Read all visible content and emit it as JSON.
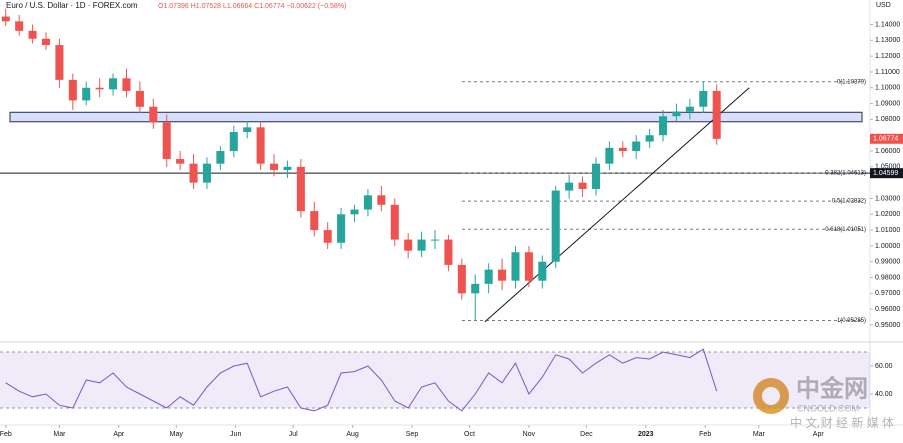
{
  "chart_data": {
    "type": "candlestick",
    "title": "Euro / U.S. Dollar · 1D · FOREX.com",
    "ohlc_text": "O1.07396 H1.07528 L1.06664 C1.06774 −0.00622 (−0.58%)",
    "currency": "USD",
    "up_color": "#26a69a",
    "down_color": "#ef5350",
    "x": [
      0,
      7,
      14,
      21,
      28,
      35,
      42,
      49,
      56,
      63,
      70,
      77,
      84,
      91,
      98,
      105,
      112,
      119,
      126,
      133,
      140,
      147,
      154,
      161,
      168,
      175,
      182,
      189,
      196,
      203,
      210,
      217,
      224,
      231,
      238,
      245,
      252,
      259,
      266,
      273,
      280,
      287,
      294,
      301,
      308,
      315,
      322,
      329,
      336,
      343,
      350,
      357,
      364,
      371
    ],
    "open": [
      1.145,
      1.142,
      1.136,
      1.131,
      1.127,
      1.105,
      1.092,
      1.1,
      1.099,
      1.106,
      1.098,
      1.088,
      1.078,
      1.055,
      1.052,
      1.04,
      1.052,
      1.06,
      1.072,
      1.075,
      1.052,
      1.048,
      1.05,
      1.022,
      1.01,
      1.002,
      1.02,
      1.023,
      1.032,
      1.026,
      1.004,
      0.997,
      1.004,
      1.004,
      0.988,
      0.97,
      0.976,
      0.985,
      0.978,
      0.996,
      0.978,
      0.99,
      1.035,
      1.04,
      1.036,
      1.052,
      1.062,
      1.06,
      1.066,
      1.07,
      1.082,
      1.085,
      1.088,
      1.098
    ],
    "high": [
      1.15,
      1.146,
      1.14,
      1.135,
      1.131,
      1.109,
      1.104,
      1.106,
      1.109,
      1.112,
      1.104,
      1.093,
      1.083,
      1.06,
      1.058,
      1.056,
      1.063,
      1.076,
      1.079,
      1.078,
      1.058,
      1.054,
      1.055,
      1.028,
      1.015,
      1.024,
      1.026,
      1.036,
      1.038,
      1.03,
      1.008,
      1.009,
      1.01,
      1.007,
      0.992,
      0.982,
      0.989,
      0.992,
      1.0,
      1.0,
      0.994,
      1.038,
      1.045,
      1.044,
      1.056,
      1.066,
      1.066,
      1.07,
      1.074,
      1.086,
      1.09,
      1.093,
      1.1038,
      1.102
    ],
    "low": [
      1.139,
      1.133,
      1.128,
      1.124,
      1.1,
      1.086,
      1.089,
      1.094,
      1.095,
      1.094,
      1.084,
      1.074,
      1.05,
      1.048,
      1.036,
      1.036,
      1.048,
      1.056,
      1.068,
      1.048,
      1.044,
      1.043,
      1.018,
      1.006,
      0.998,
      0.998,
      1.015,
      1.019,
      1.022,
      1.0,
      0.992,
      0.993,
      0.998,
      0.984,
      0.966,
      0.9528,
      0.97,
      0.972,
      0.973,
      0.974,
      0.973,
      0.986,
      1.03,
      1.031,
      1.032,
      1.048,
      1.056,
      1.055,
      1.062,
      1.066,
      1.078,
      1.08,
      1.084,
      1.064
    ],
    "close": [
      1.142,
      1.136,
      1.131,
      1.127,
      1.105,
      1.092,
      1.1,
      1.099,
      1.106,
      1.098,
      1.088,
      1.078,
      1.055,
      1.052,
      1.04,
      1.052,
      1.06,
      1.072,
      1.075,
      1.052,
      1.048,
      1.05,
      1.022,
      1.01,
      1.002,
      1.02,
      1.023,
      1.032,
      1.026,
      1.004,
      0.997,
      1.004,
      1.004,
      0.988,
      0.97,
      0.976,
      0.985,
      0.978,
      0.996,
      0.978,
      0.99,
      1.035,
      1.04,
      1.036,
      1.052,
      1.062,
      1.06,
      1.066,
      1.07,
      1.082,
      1.085,
      1.088,
      1.098,
      1.0677
    ],
    "xlim": [
      -3,
      451
    ],
    "xticks": [
      {
        "value": 0,
        "label": "Feb"
      },
      {
        "value": 28,
        "label": "Mar"
      },
      {
        "value": 59,
        "label": "Apr"
      },
      {
        "value": 89,
        "label": "May"
      },
      {
        "value": 120,
        "label": "Jun"
      },
      {
        "value": 150,
        "label": "Jul"
      },
      {
        "value": 181,
        "label": "Aug"
      },
      {
        "value": 212,
        "label": "Sep"
      },
      {
        "value": 242,
        "label": "Oct"
      },
      {
        "value": 273,
        "label": "Nov"
      },
      {
        "value": 303,
        "label": "Dec"
      },
      {
        "value": 334,
        "label": "2023"
      },
      {
        "value": 365,
        "label": "Feb"
      },
      {
        "value": 393,
        "label": "Mar"
      },
      {
        "value": 424,
        "label": "Apr"
      }
    ],
    "ylim": [
      0.9405,
      1.1555
    ],
    "yticks": [
      {
        "value": 0.95,
        "label": "0.95000"
      },
      {
        "value": 0.96,
        "label": "0.96000"
      },
      {
        "value": 0.97,
        "label": "0.97000"
      },
      {
        "value": 0.98,
        "label": "0.98000"
      },
      {
        "value": 0.99,
        "label": "0.99000"
      },
      {
        "value": 1.0,
        "label": "1.00000"
      },
      {
        "value": 1.01,
        "label": "1.01000"
      },
      {
        "value": 1.02,
        "label": "1.02000"
      },
      {
        "value": 1.03,
        "label": "1.03000"
      },
      {
        "value": 1.05,
        "label": "1.05000"
      },
      {
        "value": 1.06,
        "label": "1.06000"
      },
      {
        "value": 1.08,
        "label": "1.08000"
      },
      {
        "value": 1.09,
        "label": "1.09000"
      },
      {
        "value": 1.1,
        "label": "1.10000"
      },
      {
        "value": 1.11,
        "label": "1.11000"
      },
      {
        "value": 1.12,
        "label": "1.12000"
      },
      {
        "value": 1.13,
        "label": "1.13000"
      },
      {
        "value": 1.14,
        "label": "1.14000"
      }
    ],
    "last_price": {
      "value": 1.06774,
      "label": "1.06774"
    },
    "support": {
      "value": 1.04599,
      "label": "1.04599"
    },
    "zone": [
      1.0785,
      1.0845
    ],
    "trendline": {
      "x": [
        250,
        388
      ],
      "y": [
        0.952,
        1.1
      ]
    },
    "fib_levels": [
      {
        "value": 1.10379,
        "label": "0(1.10379)"
      },
      {
        "value": 1.04613,
        "label": "0.382(1.04613)"
      },
      {
        "value": 1.02832,
        "label": "0.5(1.02832)"
      },
      {
        "value": 1.01051,
        "label": "0.618(1.01051)"
      },
      {
        "value": 0.95285,
        "label": "1(0.95285)"
      }
    ],
    "rsi": {
      "color": "#7e57c2",
      "values": [
        48,
        42,
        38,
        40,
        32,
        30,
        50,
        48,
        55,
        45,
        40,
        35,
        30,
        38,
        32,
        45,
        55,
        60,
        62,
        38,
        42,
        45,
        30,
        28,
        32,
        55,
        56,
        60,
        50,
        35,
        30,
        45,
        48,
        35,
        28,
        40,
        55,
        48,
        62,
        40,
        52,
        68,
        65,
        55,
        62,
        68,
        62,
        66,
        65,
        70,
        68,
        66,
        72,
        42
      ],
      "ylim": [
        25,
        75
      ],
      "band": [
        30,
        70
      ],
      "yticks": [
        {
          "value": 60,
          "label": "60.00"
        },
        {
          "value": 40,
          "label": "40.00"
        }
      ]
    },
    "watermark": {
      "brand": "中金网",
      "site": "CNGOLD.COM",
      "slogan": "中 文 财 经 新 媒 体"
    }
  }
}
